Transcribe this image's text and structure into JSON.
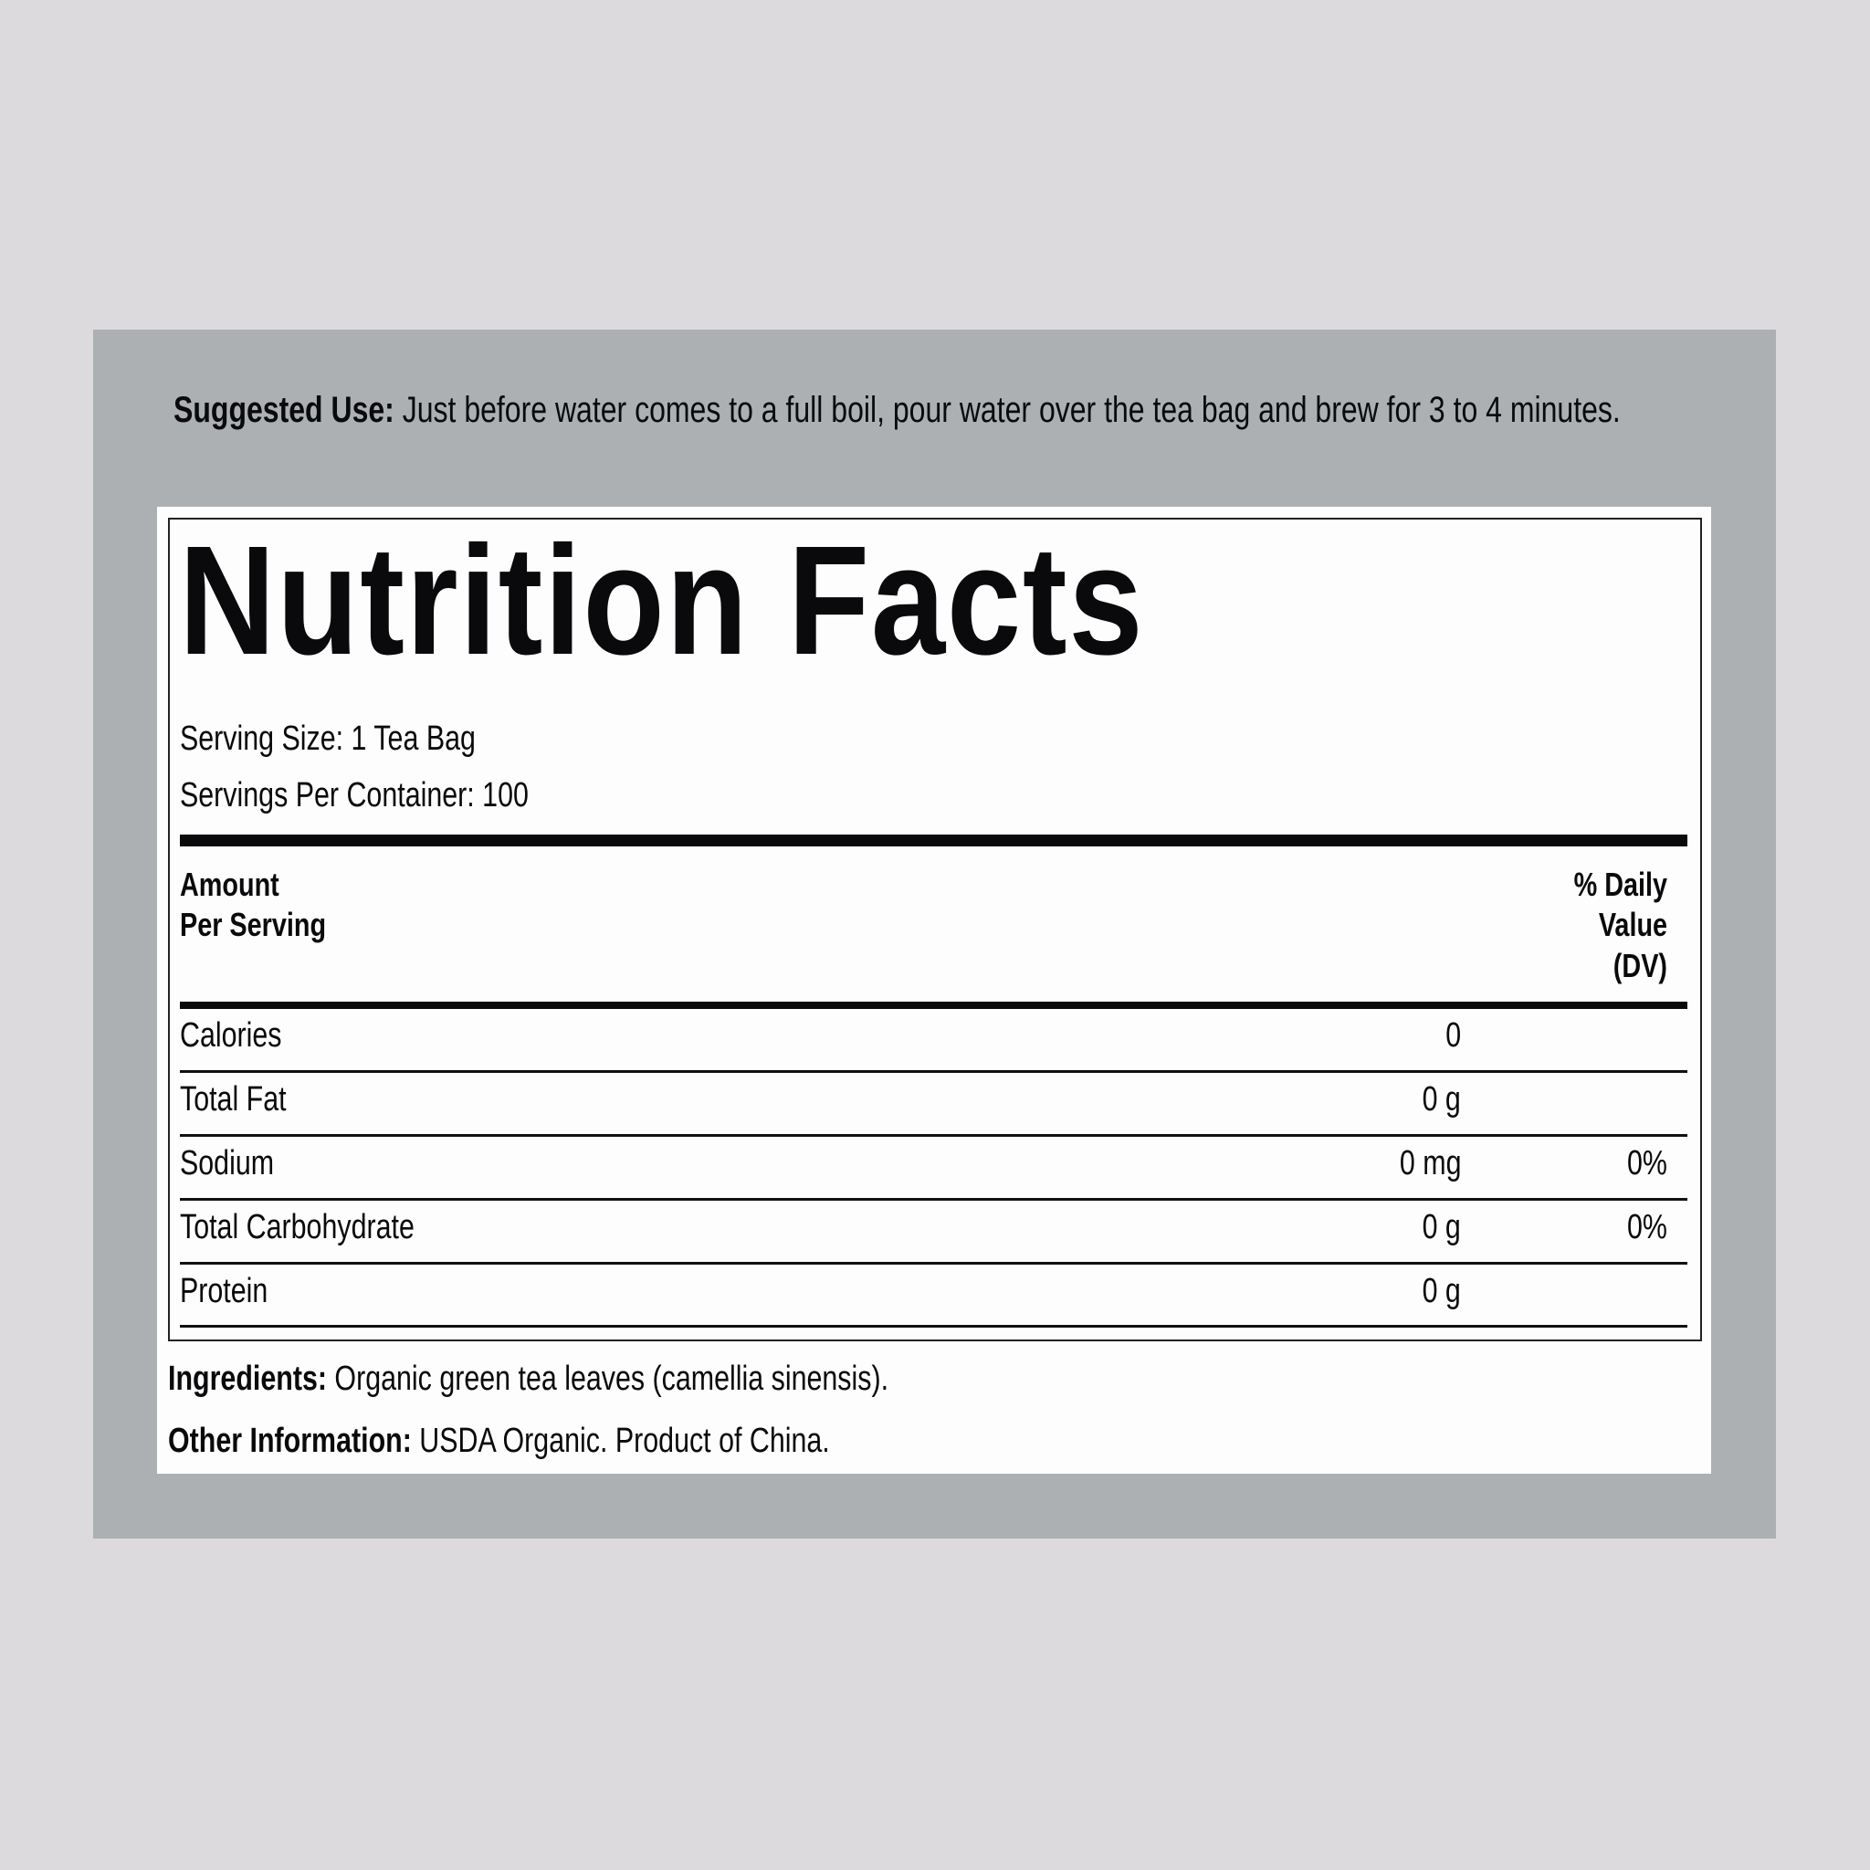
{
  "suggested_use": {
    "label": "Suggested Use:",
    "text": "Just before water comes to a full boil, pour water over the tea bag and brew for 3 to 4 minutes."
  },
  "panel": {
    "title": "Nutrition Facts",
    "serving_size": "Serving Size: 1 Tea Bag",
    "servings_per_container": "Servings Per Container: 100",
    "header": {
      "amount_line1": "Amount",
      "amount_line2": "Per Serving",
      "dv_line1": "% Daily",
      "dv_line2": "Value",
      "dv_line3": "(DV)"
    },
    "rows": [
      {
        "name": "Calories",
        "amount": "0",
        "dv": ""
      },
      {
        "name": "Total Fat",
        "amount": "0 g",
        "dv": ""
      },
      {
        "name": "Sodium",
        "amount": "0 mg",
        "dv": "0%"
      },
      {
        "name": "Total Carbohydrate",
        "amount": "0 g",
        "dv": "0%"
      },
      {
        "name": "Protein",
        "amount": "0 g",
        "dv": ""
      }
    ]
  },
  "ingredients": {
    "label": "Ingredients:",
    "text": "Organic green tea leaves (camellia sinensis)."
  },
  "other_information": {
    "label": "Other Information:",
    "text": "USDA Organic. Product of China."
  }
}
